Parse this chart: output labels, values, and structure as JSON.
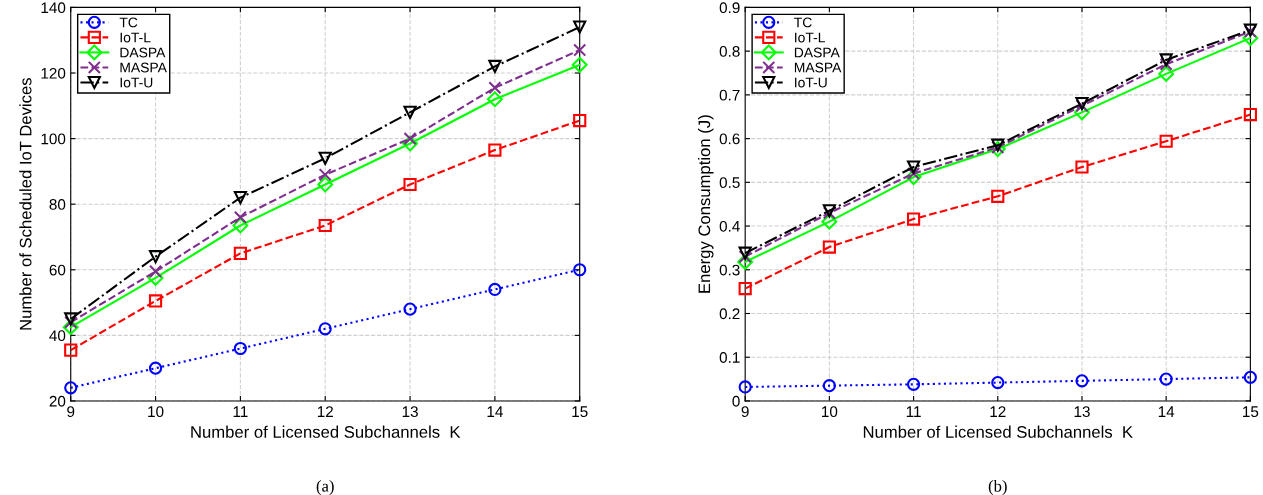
{
  "chart_data": [
    {
      "type": "line",
      "xlabel": "Number of Licensed Subchannels  K",
      "ylabel": "Number of Scheduled IoT Devices",
      "x": [
        9,
        10,
        11,
        12,
        13,
        14,
        15
      ],
      "xlim": [
        9,
        15
      ],
      "xticks": [
        9,
        10,
        11,
        12,
        13,
        14,
        15
      ],
      "ylim": [
        20,
        140
      ],
      "yticks": [
        20,
        40,
        60,
        80,
        100,
        120,
        140
      ],
      "grid": true,
      "legend": "top left",
      "annotations": [
        "(a)"
      ],
      "series": [
        {
          "name": "TC",
          "color": "#0000ff",
          "marker": "circle",
          "line_style": "dotted",
          "values": [
            24,
            30,
            36,
            42,
            48,
            54,
            60
          ]
        },
        {
          "name": "IoT-L",
          "color": "#ff0000",
          "marker": "square",
          "line_style": "dashed",
          "values": [
            35.5,
            50.5,
            65,
            73.5,
            86,
            96.5,
            105.5
          ]
        },
        {
          "name": "DASPA",
          "color": "#00ff00",
          "marker": "diamond",
          "line_style": "solid",
          "values": [
            42.5,
            57.5,
            73.5,
            86,
            98.5,
            112,
            122.5
          ]
        },
        {
          "name": "MASPA",
          "color": "#7e2f8e",
          "marker": "cross",
          "line_style": "dashed",
          "values": [
            44,
            59.5,
            76,
            89,
            100,
            115.5,
            127
          ]
        },
        {
          "name": "IoT-U",
          "color": "#000000",
          "marker": "triangle",
          "line_style": "dashdot",
          "values": [
            45,
            64,
            82,
            94,
            108,
            122,
            134
          ]
        }
      ]
    },
    {
      "type": "line",
      "xlabel": "Number of Licensed Subchannels  K",
      "ylabel": "Energy Consumption (J)",
      "x": [
        9,
        10,
        11,
        12,
        13,
        14,
        15
      ],
      "xlim": [
        9,
        15
      ],
      "xticks": [
        9,
        10,
        11,
        12,
        13,
        14,
        15
      ],
      "ylim": [
        0,
        0.9
      ],
      "yticks": [
        0,
        0.1,
        0.2,
        0.3,
        0.4,
        0.5,
        0.6,
        0.7,
        0.8,
        0.9
      ],
      "grid": true,
      "legend": "top left",
      "annotations": [
        "(b)"
      ],
      "series": [
        {
          "name": "TC",
          "color": "#0000ff",
          "marker": "circle",
          "line_style": "dotted",
          "values": [
            0.032,
            0.035,
            0.038,
            0.042,
            0.046,
            0.05,
            0.054
          ]
        },
        {
          "name": "IoT-L",
          "color": "#ff0000",
          "marker": "square",
          "line_style": "dashed",
          "values": [
            0.257,
            0.352,
            0.416,
            0.468,
            0.535,
            0.594,
            0.655
          ]
        },
        {
          "name": "DASPA",
          "color": "#00ff00",
          "marker": "diamond",
          "line_style": "solid",
          "values": [
            0.318,
            0.41,
            0.512,
            0.576,
            0.66,
            0.748,
            0.83
          ]
        },
        {
          "name": "MASPA",
          "color": "#7e2f8e",
          "marker": "cross",
          "line_style": "dashed",
          "values": [
            0.33,
            0.43,
            0.52,
            0.58,
            0.675,
            0.77,
            0.845
          ]
        },
        {
          "name": "IoT-U",
          "color": "#000000",
          "marker": "triangle",
          "line_style": "dashdot",
          "values": [
            0.338,
            0.435,
            0.535,
            0.585,
            0.68,
            0.78,
            0.848
          ]
        }
      ]
    }
  ]
}
